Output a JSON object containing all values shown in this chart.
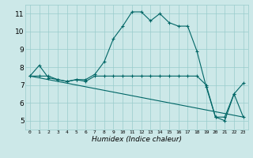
{
  "xlabel": "Humidex (Indice chaleur)",
  "bg_color": "#cce8e8",
  "grid_color": "#99cccc",
  "line_color": "#006666",
  "xlim": [
    -0.5,
    23.5
  ],
  "ylim": [
    4.5,
    11.5
  ],
  "yticks": [
    5,
    6,
    7,
    8,
    9,
    10,
    11
  ],
  "xticks": [
    0,
    1,
    2,
    3,
    4,
    5,
    6,
    7,
    8,
    9,
    10,
    11,
    12,
    13,
    14,
    15,
    16,
    17,
    18,
    19,
    20,
    21,
    22,
    23
  ],
  "series1_x": [
    0,
    1,
    2,
    3,
    4,
    5,
    6,
    7,
    8,
    9,
    10,
    11,
    12,
    13,
    14,
    15,
    16,
    17,
    18,
    19,
    20,
    21,
    22,
    23
  ],
  "series1_y": [
    7.5,
    8.1,
    7.4,
    7.3,
    7.2,
    7.3,
    7.3,
    7.6,
    8.3,
    9.6,
    10.3,
    11.1,
    11.1,
    10.6,
    11.0,
    10.5,
    10.3,
    10.3,
    8.9,
    6.9,
    5.2,
    5.0,
    6.5,
    7.1
  ],
  "series2_x": [
    0,
    1,
    2,
    3,
    4,
    5,
    6,
    7,
    8,
    9,
    10,
    11,
    12,
    13,
    14,
    15,
    16,
    17,
    18,
    19,
    20,
    21,
    22,
    23
  ],
  "series2_y": [
    7.5,
    7.5,
    7.5,
    7.3,
    7.2,
    7.3,
    7.2,
    7.5,
    7.5,
    7.5,
    7.5,
    7.5,
    7.5,
    7.5,
    7.5,
    7.5,
    7.5,
    7.5,
    7.5,
    7.0,
    5.2,
    5.2,
    6.5,
    5.2
  ],
  "series3_x": [
    0,
    23
  ],
  "series3_y": [
    7.5,
    5.2
  ]
}
